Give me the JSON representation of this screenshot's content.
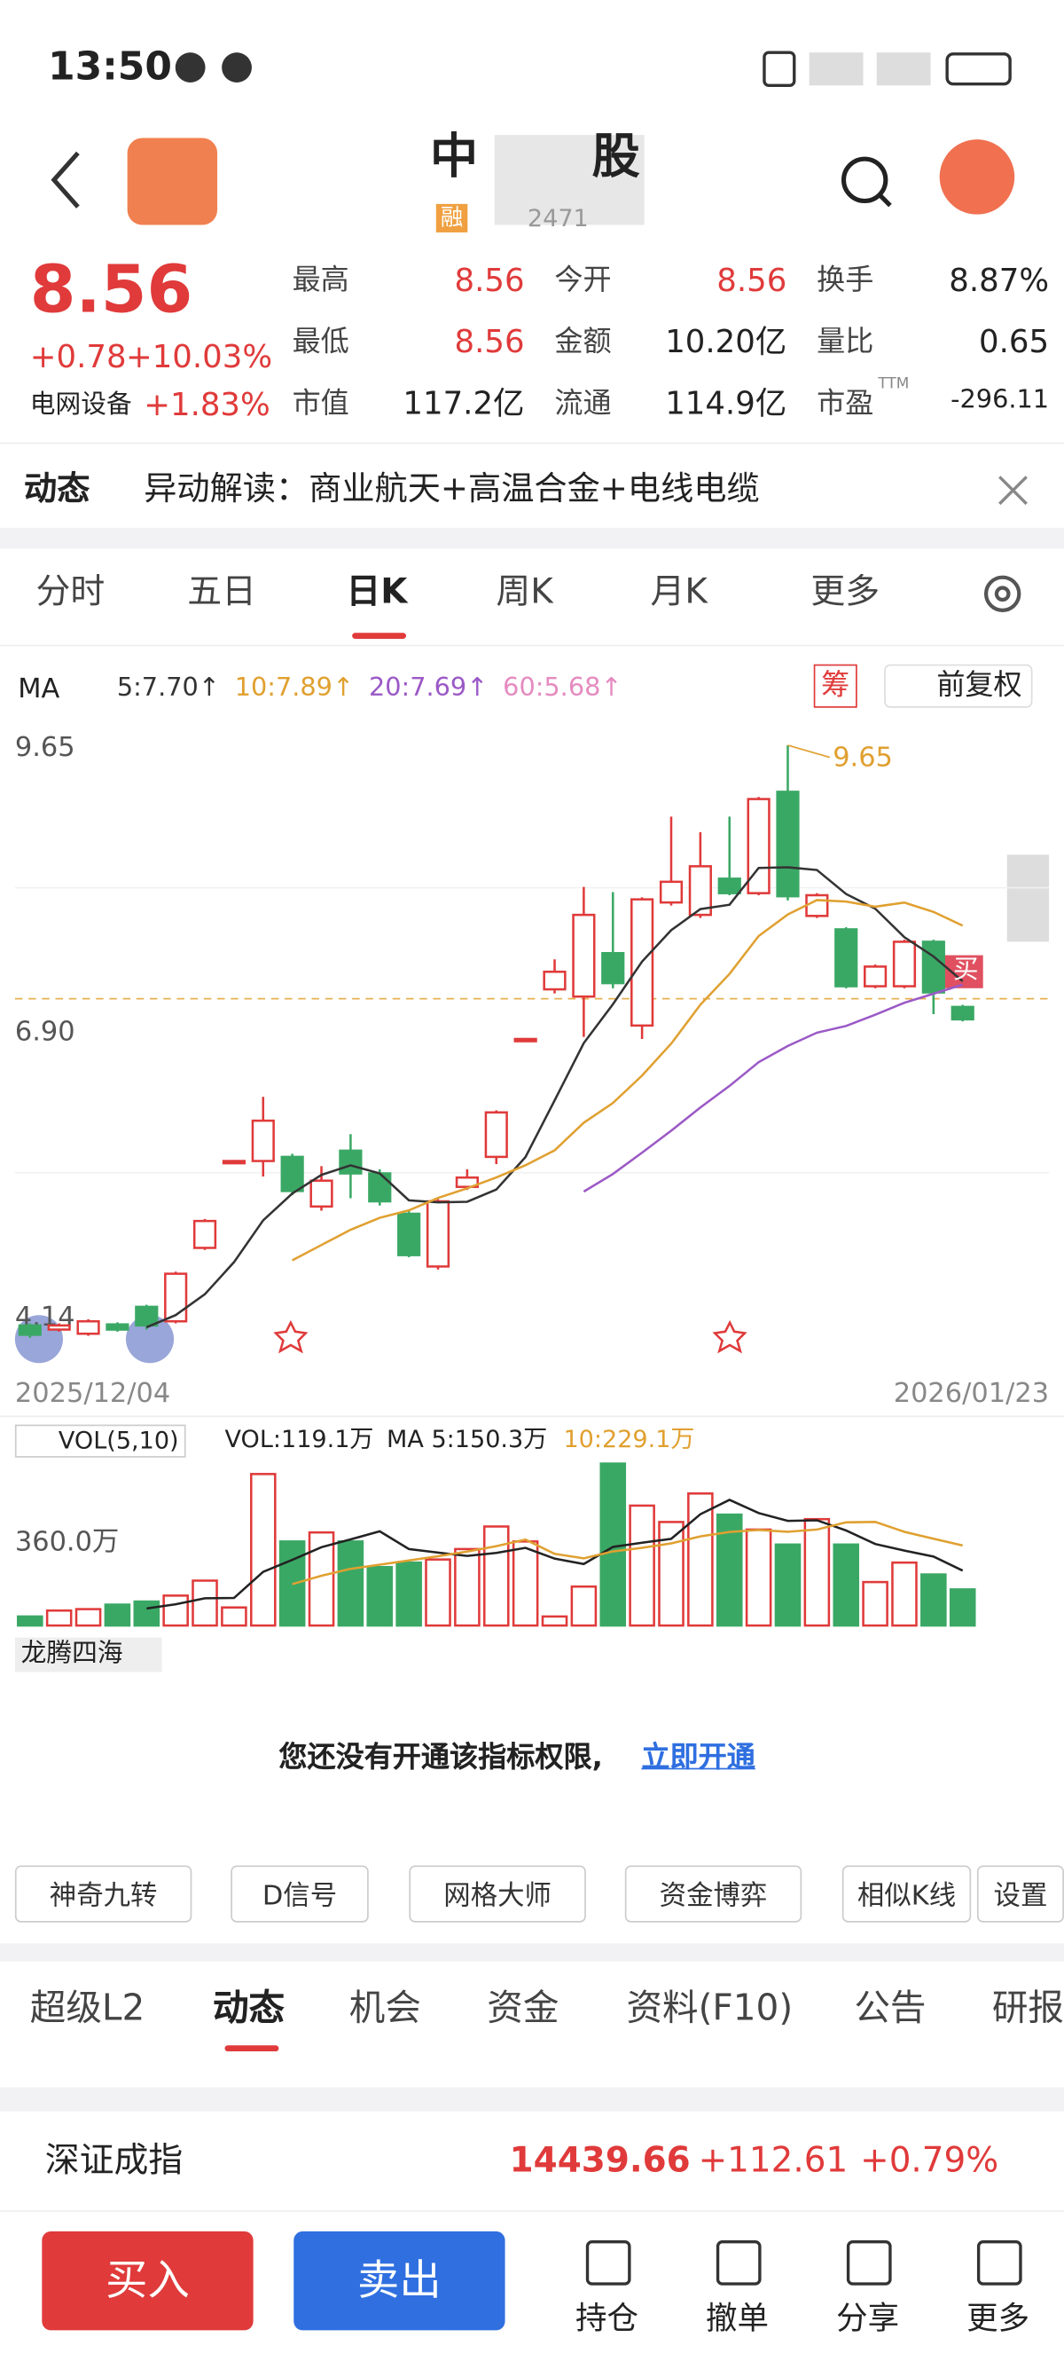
{
  "status_bar": {
    "time": "13:50"
  },
  "header": {
    "title_start": "中",
    "title_end": "股",
    "badge": "融",
    "code": "2471"
  },
  "quote": {
    "price": "8.56",
    "change": "+0.78",
    "change_pct": "+10.03%",
    "sector": "电网设备",
    "sector_pct": "+1.83%",
    "ttm": "TTM",
    "stats": [
      [
        "最高",
        "8.56"
      ],
      [
        "今开",
        "8.56"
      ],
      [
        "换手",
        "8.87%"
      ],
      [
        "最低",
        "8.56"
      ],
      [
        "金额",
        "10.20亿"
      ],
      [
        "量比",
        "0.65"
      ],
      [
        "市值",
        "117.2亿"
      ],
      [
        "流通",
        "114.9亿"
      ],
      [
        "市盈",
        "-296.11"
      ]
    ]
  },
  "news": {
    "label": "动态",
    "text": "异动解读：商业航天+高温合金+电线电缆"
  },
  "chart_tabs": [
    "分时",
    "五日",
    "日K",
    "周K",
    "月K",
    "更多"
  ],
  "kline": {
    "type": "candlestick",
    "ma_label": "MA",
    "ma_legend": [
      {
        "text": "5:7.70↑",
        "color": "#333333"
      },
      {
        "text": "10:7.89↑",
        "color": "#e0a030"
      },
      {
        "text": "20:7.69↑",
        "color": "#9b59c6"
      },
      {
        "text": "60:5.68↑",
        "color": "#e58bc0"
      }
    ],
    "chip": "筹",
    "adjust": "前复权",
    "buy_marker": "买",
    "yticks": [
      9.65,
      {
        "value": 6.9,
        "label": "6.90"
      },
      4.14
    ],
    "dates": [
      "2025/12/04",
      "2026/01/23"
    ],
    "up_color": "#e03a3a",
    "down_color": "#3aa865",
    "open": [
      4.04,
      4.0,
      3.96,
      4.05,
      4.22,
      4.08,
      4.79,
      5.63,
      5.63,
      5.67,
      5.19,
      5.73,
      5.51,
      5.12,
      4.61,
      5.38,
      5.67,
      6.81,
      7.29,
      7.22,
      7.64,
      6.94,
      8.13,
      8.01,
      8.36,
      8.22,
      9.2,
      8.0,
      7.87,
      7.32,
      7.32,
      7.75,
      7.12
    ],
    "close": [
      3.95,
      4.04,
      4.08,
      4.0,
      4.04,
      4.54,
      5.05,
      5.63,
      6.02,
      5.34,
      5.44,
      5.51,
      5.24,
      4.72,
      5.24,
      5.47,
      6.1,
      6.81,
      7.46,
      8.01,
      7.35,
      8.16,
      8.33,
      8.48,
      8.22,
      9.13,
      8.19,
      8.2,
      7.32,
      7.51,
      7.75,
      7.26,
      7.0
    ],
    "high": [
      4.06,
      4.06,
      4.1,
      4.07,
      4.24,
      4.56,
      5.07,
      5.64,
      6.25,
      5.7,
      5.58,
      5.89,
      5.55,
      5.15,
      5.26,
      5.55,
      6.12,
      6.82,
      7.58,
      8.28,
      8.23,
      8.18,
      8.96,
      8.81,
      8.96,
      9.15,
      9.65,
      8.22,
      7.89,
      7.53,
      7.77,
      7.77,
      7.14
    ],
    "low": [
      3.92,
      3.98,
      3.94,
      3.98,
      4.0,
      4.06,
      4.77,
      5.62,
      5.48,
      5.3,
      5.15,
      5.27,
      5.2,
      4.7,
      4.58,
      5.35,
      5.6,
      6.8,
      7.25,
      6.83,
      7.3,
      6.81,
      8.1,
      7.98,
      8.2,
      8.2,
      8.15,
      7.98,
      7.3,
      7.3,
      7.3,
      7.05,
      6.98
    ]
  },
  "volume": {
    "label": "VOL(5,10)",
    "vol": "VOL:119.1万",
    "ma5": "MA 5:150.3万",
    "ma10": "10:229.1万",
    "yticks": [
      {
        "value": 360,
        "label": "360.0万"
      }
    ],
    "values": [
      38,
      63,
      69,
      88,
      101,
      126,
      189,
      76,
      638,
      354,
      392,
      354,
      246,
      265,
      278,
      322,
      417,
      354,
      38,
      164,
      682,
      505,
      436,
      556,
      467,
      404,
      341,
      448,
      341,
      183,
      265,
      215,
      152
    ]
  },
  "indicator": {
    "name": "龙腾四海",
    "notice": "您还没有开通该指标权限,",
    "link": "立即开通"
  },
  "tools": [
    "神奇九转",
    "D信号",
    "网格大师",
    "资金博弈",
    "相似K线"
  ],
  "settings": "设置",
  "section_tabs": [
    "超级L2",
    "动态",
    "机会",
    "资金",
    "资料(F10)",
    "公告",
    "研报"
  ],
  "index": {
    "name": "深证成指",
    "value": "14439.66",
    "change": "+112.61",
    "pct": "+0.79%"
  },
  "footer": {
    "buy": "买入",
    "sell": "卖出",
    "actions": [
      "持仓",
      "撤单",
      "分享",
      "更多"
    ]
  }
}
